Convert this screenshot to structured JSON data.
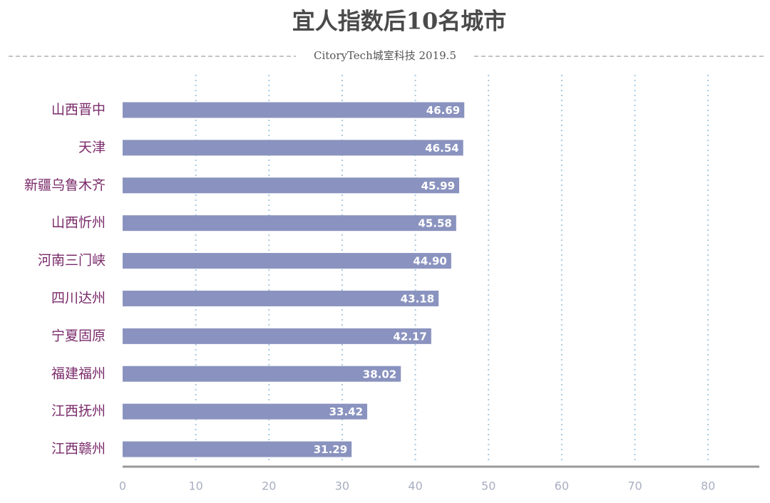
{
  "chart_data": {
    "type": "bar",
    "orientation": "horizontal",
    "title": "宜人指数后10名城市",
    "subtitle": "CitoryTech城室科技 2019.5",
    "categories": [
      "山西晋中",
      "天津",
      "新疆乌鲁木齐",
      "山西忻州",
      "河南三门峡",
      "四川达州",
      "宁夏固原",
      "福建福州",
      "江西抚州",
      "江西赣州"
    ],
    "values": [
      46.69,
      46.54,
      45.99,
      45.58,
      44.9,
      43.18,
      42.17,
      38.02,
      33.42,
      31.29
    ],
    "value_labels": [
      "46.69",
      "46.54",
      "45.99",
      "45.58",
      "44.90",
      "43.18",
      "42.17",
      "38.02",
      "33.42",
      "31.29"
    ],
    "color": "#8a93bf",
    "xlim": [
      0,
      87
    ],
    "xticks": [
      0,
      10,
      20,
      30,
      40,
      50,
      60,
      70,
      80
    ],
    "grid": true
  }
}
